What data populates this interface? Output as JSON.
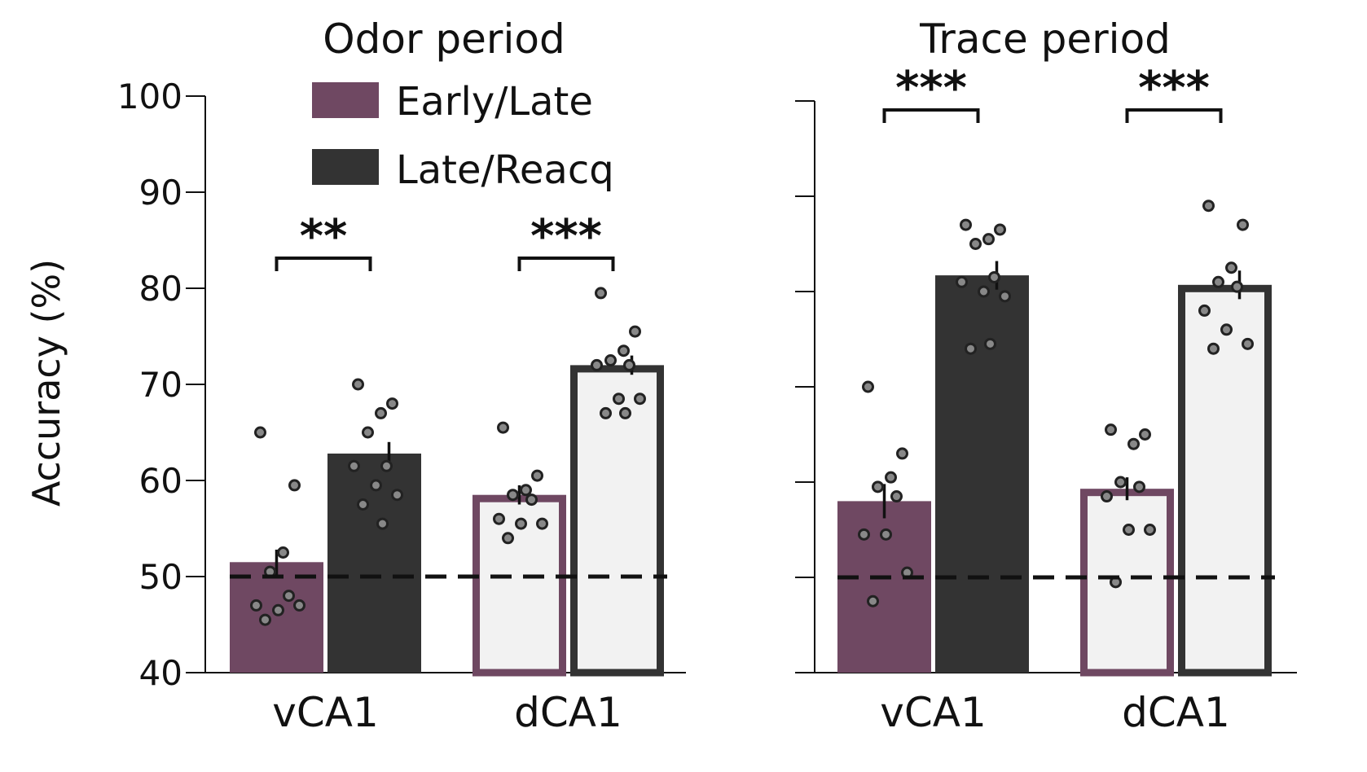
{
  "figure": {
    "ylabel": "Accuracy (%)",
    "chance_level": 50,
    "colors": {
      "early_late": "#6f4862",
      "late_reacq": "#333333",
      "light_fill": "#f2f2f2",
      "dots": "#888888",
      "dot_stroke": "#222222"
    },
    "legend": [
      {
        "label": "Early/Late",
        "color": "#6f4862"
      },
      {
        "label": "Late/Reacq",
        "color": "#333333"
      }
    ]
  },
  "chart_data": [
    {
      "type": "bar",
      "title": "Odor period",
      "categories": [
        "vCA1",
        "dCA1"
      ],
      "ylim": [
        40,
        100
      ],
      "yticks": [
        40,
        50,
        60,
        70,
        80,
        90,
        100
      ],
      "ytick_labels_visible": true,
      "series": [
        {
          "name": "Early/Late",
          "values": [
            51.5,
            58.5
          ],
          "sem": [
            1.3,
            1.0
          ],
          "points": [
            [
              65,
              59.5,
              52.5,
              50.5,
              48,
              47,
              46.5,
              47,
              45.5
            ],
            [
              65.5,
              60.5,
              59,
              58.5,
              58,
              56,
              55.5,
              55.5,
              54
            ]
          ]
        },
        {
          "name": "Late/Reacq",
          "values": [
            62.8,
            72.0
          ],
          "sem": [
            1.2,
            1.0
          ],
          "points": [
            [
              70,
              68,
              67,
              65,
              61.5,
              61.5,
              59.5,
              58.5,
              57.5,
              55.5
            ],
            [
              79.5,
              75.5,
              73.5,
              72.5,
              72,
              72,
              68.5,
              68.5,
              67,
              67
            ]
          ]
        }
      ],
      "significance": [
        {
          "category": "vCA1",
          "label": "**"
        },
        {
          "category": "dCA1",
          "label": "***"
        }
      ]
    },
    {
      "type": "bar",
      "title": "Trace period",
      "categories": [
        "vCA1",
        "dCA1"
      ],
      "ylim": [
        40,
        100
      ],
      "yticks": [
        40,
        50,
        60,
        70,
        80,
        90,
        100
      ],
      "ytick_labels_visible": false,
      "series": [
        {
          "name": "Early/Late",
          "values": [
            58.0,
            59.3
          ],
          "sem": [
            1.8,
            1.2
          ],
          "points": [
            [
              70,
              63,
              60.5,
              59.5,
              58.5,
              54.5,
              54.5,
              50.5,
              47.5
            ],
            [
              65.5,
              65,
              64,
              60,
              59.5,
              58.5,
              55,
              55,
              49.5
            ]
          ]
        },
        {
          "name": "Late/Reacq",
          "values": [
            81.7,
            80.7
          ],
          "sem": [
            1.5,
            1.5
          ],
          "points": [
            [
              87,
              86.5,
              85.5,
              85,
              81.5,
              81,
              80,
              79.5,
              74,
              74.5
            ],
            [
              89,
              87,
              82.5,
              81,
              80.5,
              78,
              76,
              74.5,
              74
            ]
          ]
        }
      ],
      "significance": [
        {
          "category": "vCA1",
          "label": "***"
        },
        {
          "category": "dCA1",
          "label": "***"
        }
      ]
    }
  ]
}
